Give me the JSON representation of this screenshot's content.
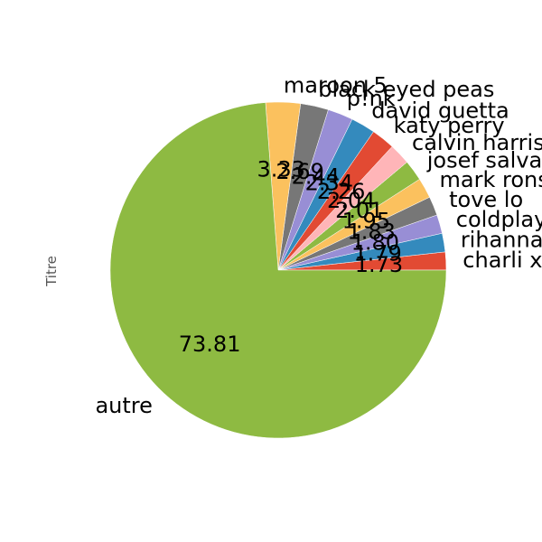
{
  "chart_data": {
    "type": "pie",
    "ylabel": "Titre",
    "start_angle_deg": 0,
    "direction": "counterclockwise",
    "slices": [
      {
        "label": "charli xcx",
        "value": 1.73,
        "display": "1.73",
        "color": "#E24A33"
      },
      {
        "label": "rihanna",
        "value": 1.79,
        "display": "1.79",
        "color": "#348ABD"
      },
      {
        "label": "coldplay",
        "value": 1.8,
        "display": "1.80",
        "color": "#988ED5"
      },
      {
        "label": "tove lo",
        "value": 1.83,
        "display": "1.83",
        "color": "#777777"
      },
      {
        "label": "mark ronson",
        "value": 1.95,
        "display": "1.95",
        "color": "#FBC15E"
      },
      {
        "label": "josef salvat",
        "value": 2.01,
        "display": "2.01",
        "color": "#8EBA42"
      },
      {
        "label": "calvin harris",
        "value": 2.04,
        "display": "2.04",
        "color": "#FFB5B8"
      },
      {
        "label": "katy perry",
        "value": 2.26,
        "display": "2.26",
        "color": "#E24A33"
      },
      {
        "label": "david guetta",
        "value": 2.34,
        "display": "2.34",
        "color": "#348ABD"
      },
      {
        "label": "p!nk",
        "value": 2.44,
        "display": "2.44",
        "color": "#988ED5"
      },
      {
        "label": "black eyed peas",
        "value": 2.69,
        "display": "2.69",
        "color": "#777777"
      },
      {
        "label": "maroon 5",
        "value": 3.33,
        "display": "3.33",
        "color": "#FBC15E"
      },
      {
        "label": "autre",
        "value": 73.81,
        "display": "73.81",
        "color": "#8EBA42"
      }
    ]
  }
}
